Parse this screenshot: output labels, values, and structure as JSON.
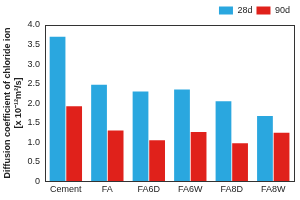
{
  "chart_data": {
    "type": "bar",
    "ylabel": "Diffusion coefficient of chloride ion\n[x 10⁻¹²m²/s]",
    "categories": [
      "Cement",
      "FA",
      "FA6D",
      "FA6W",
      "FA8D",
      "FA8W"
    ],
    "series": [
      {
        "name": "28d",
        "color": "#2aa7df",
        "values": [
          3.7,
          2.47,
          2.3,
          2.35,
          2.05,
          1.67
        ]
      },
      {
        "name": "90d",
        "color": "#e0211b",
        "values": [
          1.92,
          1.3,
          1.05,
          1.26,
          0.97,
          1.24
        ]
      }
    ],
    "ylim": [
      0,
      4
    ],
    "yticks": [
      0,
      0.5,
      {
        "value": 1,
        "label": "1.0"
      },
      1.5,
      {
        "value": 2,
        "label": "2.0"
      },
      2.5,
      {
        "value": 3,
        "label": "3.0"
      },
      3.5,
      {
        "value": 4,
        "label": "4.0"
      }
    ],
    "grid": false,
    "legend": "upper right"
  }
}
